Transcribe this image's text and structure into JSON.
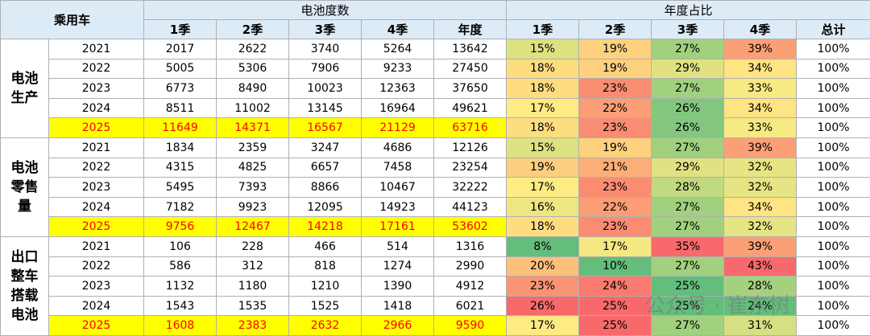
{
  "header": {
    "corner": "乘用车",
    "group_counts": "电池度数",
    "group_shares": "年度占比",
    "columns": [
      "1季",
      "2季",
      "3季",
      "4季",
      "年度",
      "1季",
      "2季",
      "3季",
      "4季",
      "总计"
    ]
  },
  "sections": [
    {
      "label": [
        "电池",
        "生产"
      ],
      "rows": [
        {
          "year": "2021",
          "values": [
            2017,
            2622,
            3740,
            5264,
            13642
          ],
          "shares": [
            "15%",
            "19%",
            "27%",
            "39%",
            "100%"
          ]
        },
        {
          "year": "2022",
          "values": [
            5005,
            5306,
            7906,
            9233,
            27450
          ],
          "shares": [
            "18%",
            "19%",
            "29%",
            "34%",
            "100%"
          ]
        },
        {
          "year": "2023",
          "values": [
            6773,
            8490,
            10023,
            12363,
            37650
          ],
          "shares": [
            "18%",
            "23%",
            "27%",
            "33%",
            "100%"
          ]
        },
        {
          "year": "2024",
          "values": [
            8511,
            11002,
            13145,
            16964,
            49621
          ],
          "shares": [
            "17%",
            "22%",
            "26%",
            "34%",
            "100%"
          ]
        },
        {
          "year": "2025",
          "values": [
            11649,
            14371,
            16567,
            21129,
            63716
          ],
          "shares": [
            "18%",
            "23%",
            "26%",
            "33%",
            "100%"
          ]
        }
      ]
    },
    {
      "label": [
        "电池",
        "零售",
        "量"
      ],
      "rows": [
        {
          "year": "2021",
          "values": [
            1834,
            2359,
            3247,
            4686,
            12126
          ],
          "shares": [
            "15%",
            "19%",
            "27%",
            "39%",
            "100%"
          ]
        },
        {
          "year": "2022",
          "values": [
            4315,
            4825,
            6657,
            7458,
            23254
          ],
          "shares": [
            "19%",
            "21%",
            "29%",
            "32%",
            "100%"
          ]
        },
        {
          "year": "2023",
          "values": [
            5495,
            7393,
            8866,
            10467,
            32222
          ],
          "shares": [
            "17%",
            "23%",
            "28%",
            "32%",
            "100%"
          ]
        },
        {
          "year": "2024",
          "values": [
            7182,
            9923,
            12095,
            14923,
            44123
          ],
          "shares": [
            "16%",
            "22%",
            "27%",
            "34%",
            "100%"
          ]
        },
        {
          "year": "2025",
          "values": [
            9756,
            12467,
            14218,
            17161,
            53602
          ],
          "shares": [
            "18%",
            "23%",
            "27%",
            "32%",
            "100%"
          ]
        }
      ]
    },
    {
      "label": [
        "出口",
        "整车",
        "搭载",
        "电池"
      ],
      "rows": [
        {
          "year": "2021",
          "values": [
            106,
            228,
            466,
            514,
            1316
          ],
          "shares": [
            "8%",
            "17%",
            "35%",
            "39%",
            "100%"
          ]
        },
        {
          "year": "2022",
          "values": [
            586,
            312,
            818,
            1274,
            2990
          ],
          "shares": [
            "20%",
            "10%",
            "27%",
            "43%",
            "100%"
          ]
        },
        {
          "year": "2023",
          "values": [
            1132,
            1180,
            1210,
            1390,
            4912
          ],
          "shares": [
            "23%",
            "24%",
            "25%",
            "28%",
            "100%"
          ]
        },
        {
          "year": "2024",
          "values": [
            1543,
            1535,
            1525,
            1418,
            6021
          ],
          "shares": [
            "26%",
            "25%",
            "25%",
            "24%",
            "100%"
          ]
        },
        {
          "year": "2025",
          "values": [
            1608,
            2383,
            2632,
            2966,
            9590
          ],
          "shares": [
            "17%",
            "25%",
            "27%",
            "31%",
            "100%"
          ]
        }
      ]
    }
  ],
  "watermark": "公众号 · 崔东树"
}
